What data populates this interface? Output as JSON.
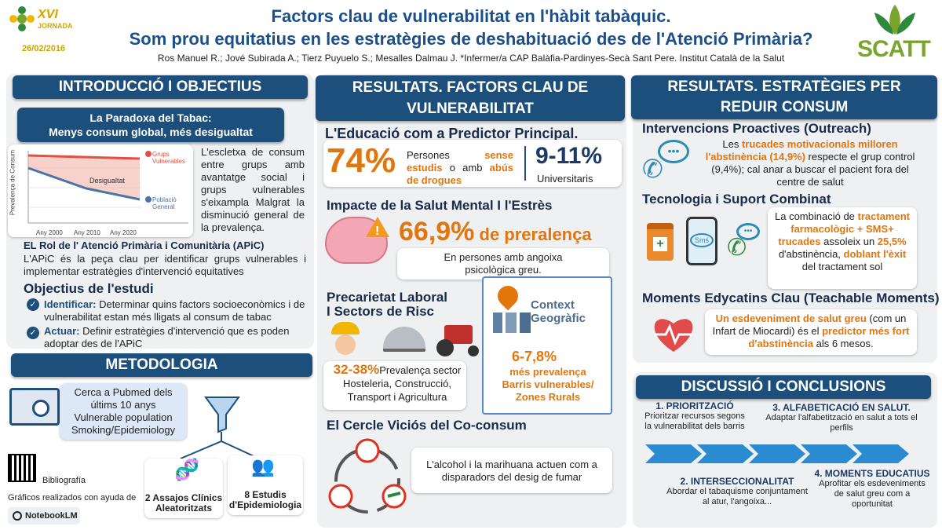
{
  "header": {
    "title_line1": "Factors clau de vulnerabilitat en l'hàbit tabàquic.",
    "title_line2": "Som prou equitatius en les estratègies de deshabituació des de l'Atenció Primària?",
    "authors": "Ros Manuel R.; Jové Subirada A.; Tierz Puyuelo S.;  Mesalles Dalmau J. *Infermer/a CAP Balàfia-Pardinyes-Secà Sant Pere. Institut Català de la Salut",
    "date": "26/02/2016",
    "jornada_num": "XVI",
    "jornada_label": "JORNADA",
    "brand": "SCATT"
  },
  "intro": {
    "title": "INTRODUCCIÓ I OBJECTIUS",
    "paradox_line1": "La Paradoxa del Tabac:",
    "paradox_line2": "Menys consum global, més desigualtat",
    "chart_ylabel": "Prevalença de Consum",
    "chart_gap": "Desigualtat",
    "chart_legend_vuln_1": "Grups",
    "chart_legend_vuln_2": "Vulnerables",
    "chart_legend_gen_1": "Població",
    "chart_legend_gen_2": "General",
    "chart_x1": "Any 2000",
    "chart_x2": "Any 2010",
    "chart_x3": "Any 2020",
    "gap_text": "L'escletxa de consum entre grups amb avantatge social i grups vulnerables s'eixampla Malgrat la disminució general de la prevalença.",
    "apic_title": "EL Rol de l' Atenció Primària i Comunitària (APiC)",
    "apic_text": "L'APiC és la peça clau per identificar grups vulnerables i implementar estratègies d'intervenció equitatives",
    "objectives_title": "Objectius de l'estudi",
    "obj1_label": "Identificar:",
    "obj1_text": " Determinar quins factors socioeconòmics i de vulnerabilitat estan més lligats al consum de tabac",
    "obj2_label": "Actuar:",
    "obj2_text": " Definir estratègies d'intervenció que es poden adoptar des  de l'APiC"
  },
  "method": {
    "title": "METODOLOGIA",
    "search_line1": "Cerca a Pubmed dels",
    "search_line2": "últims 10 anys",
    "search_line3": "Vulnerable population",
    "search_line4": "Smoking/Epidemiology",
    "trials": "2 Assajos Clínics Aleatoritzats",
    "epi": "8 Estudis d'Epidemiologia",
    "biblio": "Bibliografía",
    "credits": "Gráficos realizados con ayuda de",
    "notebook": "NotebookLM"
  },
  "results1": {
    "title_line1": "RESULTATS. FACTORS CLAU DE",
    "title_line2": "VULNERABILITAT",
    "edu_title": "L'Educació com a Predictor Principal.",
    "edu_pct": "74%",
    "edu_t1": "Persones ",
    "edu_t2": "sense",
    "edu_t3": "estudis",
    "edu_t4": " o amb ",
    "edu_t5": "abús de drogues",
    "uni_pct": "9-11%",
    "uni_text": "Universitaris",
    "mental_title": "Impacte de la Salut Mental I l'Estrès",
    "mental_pct": "66,9%",
    "mental_suffix": " de preralença",
    "mental_text": "En persones amb angoixa psicològica greu.",
    "labor_title_1": "Precarietat Laboral",
    "labor_title_2": "I Sectors de Risc",
    "labor_pct": "32-38%",
    "labor_text": "Prevalença sector Hosteleria, Construcció, Transport i Agricultura",
    "geo_title_1": "Context",
    "geo_title_2": "Geogràfic",
    "geo_pct": "6-7,8%",
    "geo_t1": "més prevalença",
    "geo_t2": "Barris vulnerables/ Zones Rurals",
    "cocons_title": "El Cercle Viciós del Co-consum",
    "cocons_text": "L'alcohol i la marihuana actuen com a disparadors del desig de fumar"
  },
  "results2": {
    "title_line1": "RESULTATS. ESTRATÈGIES PER",
    "title_line2": "REDUIR CONSUM",
    "out_title": "Intervencions Proactives (Outreach)",
    "out_t1": "Les ",
    "out_t2": "trucades motivacionals milloren l'abstinència (14,9%)",
    "out_t3": " respecte el grup control (9,4%); cal anar a buscar el pacient fora del centre de salut",
    "tech_title": "Tecnologia i Suport Combinat",
    "tech_t1": "La combinació de ",
    "tech_t2": "tractament farmacològic + SMS+ trucades",
    "tech_t3": " assoleix un ",
    "tech_t4": "25,5%",
    "tech_t5": " d'abstinència, ",
    "tech_t6": "doblant l'èxit",
    "tech_t7": " del tractament sol",
    "sms": "Smś",
    "teach_title": "Moments Edycatins Clau (Teachable Moments)",
    "teach_t1": "Un esdeveniment de salut greu",
    "teach_t2": " (com un Infart de Miocardi) és el ",
    "teach_t3": "predictor més fort d'abstinència",
    "teach_t4": " als 6 mesos."
  },
  "discussion": {
    "title": "DISCUSSIÓ I CONCLUSIONS",
    "p1_title": "1. PRIORITZACIÓ",
    "p1_text": "Prioritzar recursos segons la vulnerabilitat dels barris",
    "p2_title": "2. INTERSECCIONALITAT",
    "p2_text": "Abordar el tabaquisme conjuntament al atur, l'angoixa...",
    "p3_title": "3. ALFABETICACIÓ EN SALUT.",
    "p3_text": "Adaptar l'alfabetització en salut a tots el perfils",
    "p4_title": "4. MOMENTS EDUCATIUS",
    "p4_text": "Aprofitar els esdeveniments de salut greu com a oportunitat"
  },
  "colors": {
    "navy": "#1d4f7d",
    "orange": "#e2760d",
    "green": "#7aa52d"
  }
}
